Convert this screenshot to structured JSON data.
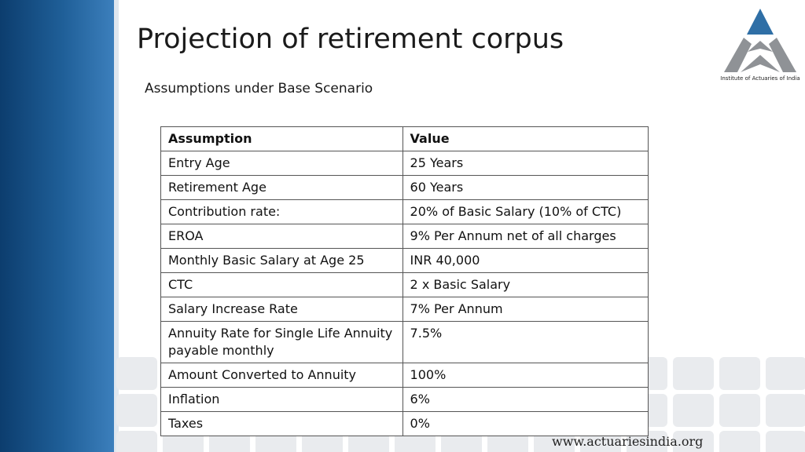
{
  "slide": {
    "title": "Projection of retirement corpus",
    "subtitle": "Assumptions under Base Scenario"
  },
  "logo": {
    "caption": "Institute of Actuaries of India",
    "colors": {
      "top_triangle": "#2f6fa6",
      "lower_shapes": "#8f9296"
    }
  },
  "table": {
    "headers": [
      "Assumption",
      "Value"
    ],
    "rows": [
      [
        "Entry Age",
        "25 Years"
      ],
      [
        "Retirement Age",
        "60 Years"
      ],
      [
        "Contribution rate:",
        "20% of Basic Salary (10% of CTC)"
      ],
      [
        "EROA",
        "9% Per Annum net of all charges"
      ],
      [
        "Monthly Basic Salary at Age 25",
        "INR 40,000"
      ],
      [
        "CTC",
        "2 x Basic Salary"
      ],
      [
        "Salary Increase Rate",
        "7% Per Annum"
      ],
      [
        "Annuity Rate for Single Life Annuity payable monthly",
        "7.5%"
      ],
      [
        "Amount Converted to Annuity",
        "100%"
      ],
      [
        "Inflation",
        "6%"
      ],
      [
        "Taxes",
        "0%"
      ]
    ]
  },
  "footer": {
    "url": "www.actuariesindia.org"
  },
  "theme": {
    "sidebar_color": "#1f5f98",
    "text_color": "#1a1a1a"
  }
}
